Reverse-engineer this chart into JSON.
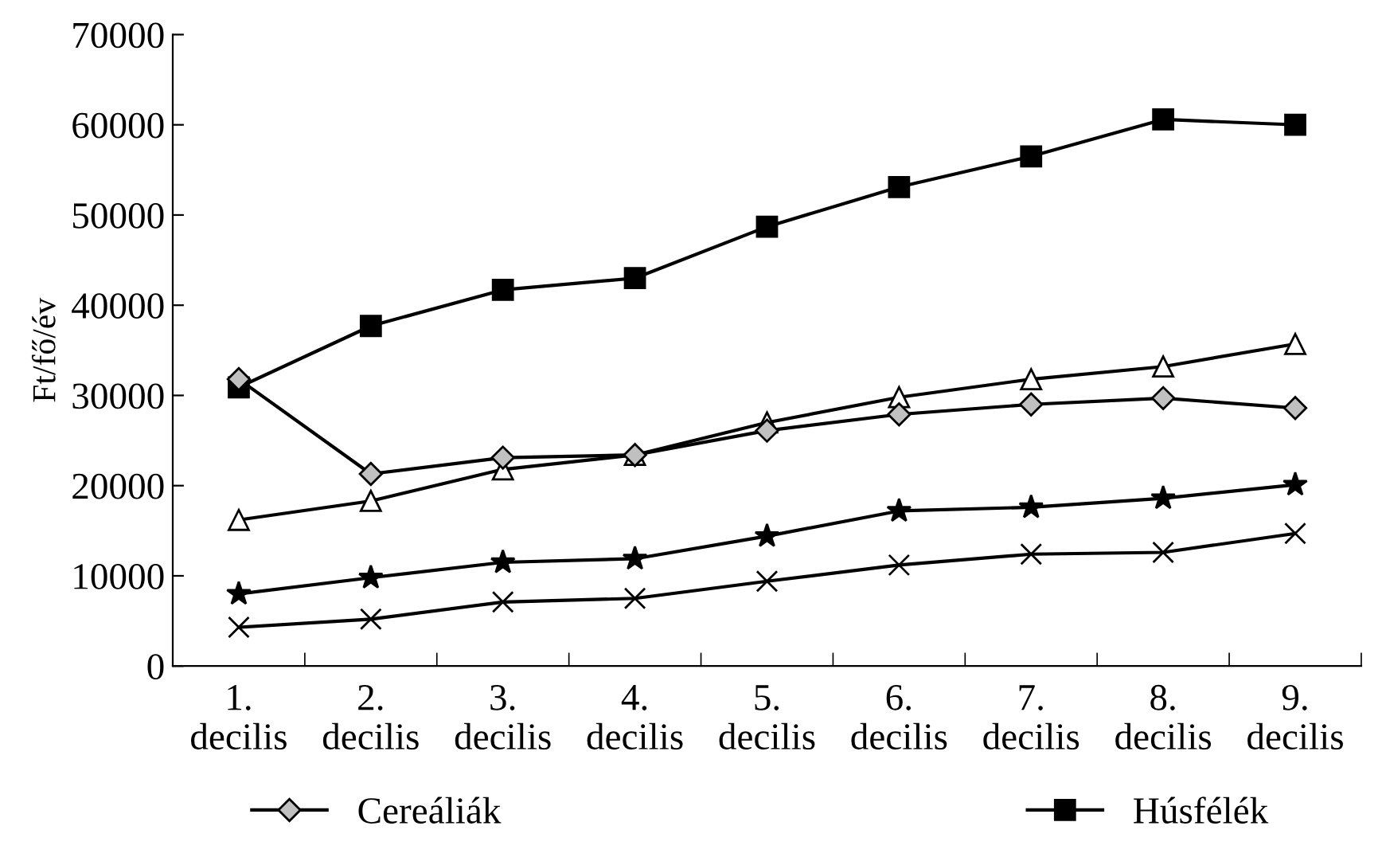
{
  "chart_data": {
    "type": "line",
    "ylabel": "Ft/fő/év",
    "categories": [
      "1. decilis",
      "2. decilis",
      "3. decilis",
      "4. decilis",
      "5. decilis",
      "6. decilis",
      "7. decilis",
      "8. decilis",
      "9. decilis"
    ],
    "series": [
      {
        "name": "Cereáliák",
        "color": "#000000",
        "marker": "diamond",
        "values": [
          31800,
          21300,
          23100,
          23400,
          26100,
          27900,
          29000,
          29700,
          28600
        ]
      },
      {
        "name": "Húsfélék",
        "color": "#000000",
        "marker": "square",
        "values": [
          30900,
          37700,
          41700,
          43000,
          48700,
          53100,
          56500,
          60600,
          60000
        ]
      },
      {
        "color": "#000000",
        "marker": "triangle",
        "values": [
          16200,
          18300,
          21800,
          23400,
          27000,
          29800,
          31800,
          33200,
          35700
        ]
      },
      {
        "color": "#000000",
        "marker": "star",
        "values": [
          8000,
          9800,
          11500,
          11900,
          14400,
          17200,
          17600,
          18600,
          20100
        ]
      },
      {
        "color": "#000000",
        "marker": "cross",
        "values": [
          4300,
          5200,
          7100,
          7500,
          9400,
          11200,
          12400,
          12600,
          14700
        ]
      }
    ],
    "ylim": [
      0,
      70000
    ],
    "yticks": [
      0,
      10000,
      20000,
      30000,
      40000,
      50000,
      60000,
      70000
    ],
    "grid": false,
    "legend": "bottom",
    "line_style": "solid"
  }
}
